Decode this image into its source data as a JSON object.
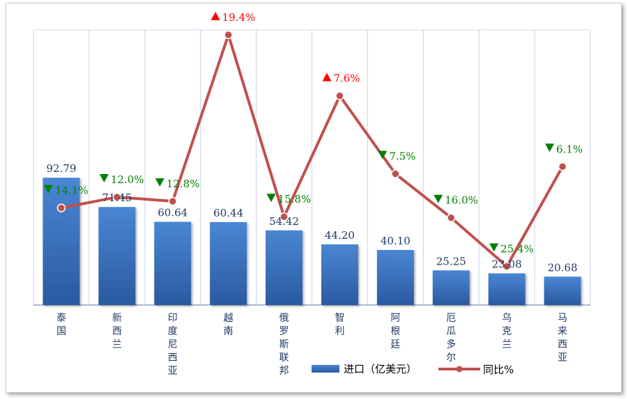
{
  "chart_data": {
    "type": "bar",
    "categories": [
      "泰国",
      "新西兰",
      "印度尼西亚",
      "越南",
      "俄罗斯联邦",
      "智利",
      "阿根廷",
      "厄瓜多尔",
      "乌克兰",
      "马来西亚"
    ],
    "series": [
      {
        "name": "进口（亿美元）",
        "type": "bar",
        "values": [
          92.79,
          71.45,
          60.64,
          60.44,
          54.42,
          44.2,
          40.1,
          25.25,
          23.08,
          20.68
        ],
        "labels": [
          "92.79",
          "71.45",
          "60.64",
          "60.44",
          "54.42",
          "44.20",
          "40.10",
          "25.25",
          "23.08",
          "20.68"
        ],
        "color": "#3a74c4"
      },
      {
        "name": "同比%",
        "type": "line",
        "values": [
          -14.1,
          -12.0,
          -12.8,
          19.4,
          -15.8,
          7.6,
          -7.5,
          -16.0,
          -25.4,
          -6.1
        ],
        "labels": [
          "14.1%",
          "12.0%",
          "12.8%",
          "19.4%",
          "15.8%",
          "7.6%",
          "7.5%",
          "16.0%",
          "25.4%",
          "6.1%"
        ],
        "directions": [
          "down",
          "down",
          "down",
          "up",
          "down",
          "up",
          "down",
          "down",
          "down",
          "down"
        ],
        "color": "#c0504d"
      }
    ],
    "colors": {
      "up": "#ff0000",
      "down": "#008000",
      "bar_label": "#1f3864",
      "axis_text": "#1f3864"
    },
    "legend_position": "bottom-right",
    "grid": "vertical"
  }
}
